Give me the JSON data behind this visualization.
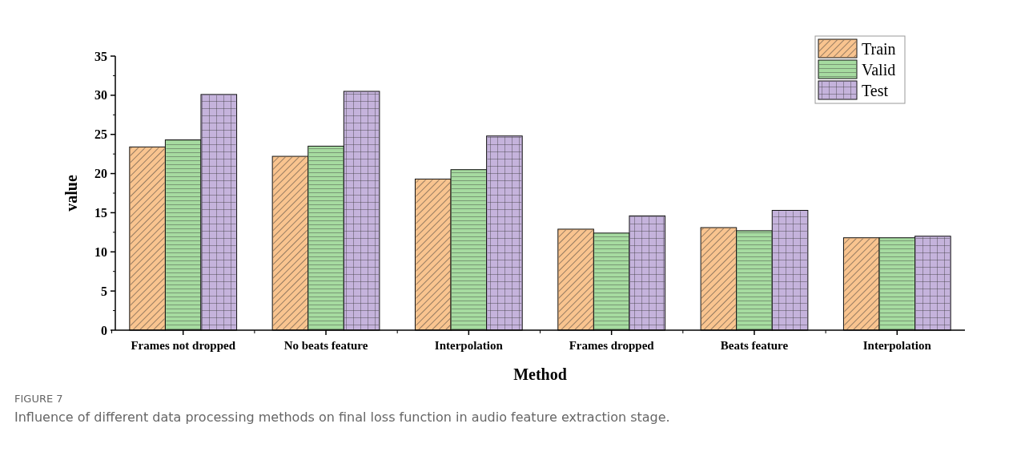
{
  "chart_data": {
    "type": "bar",
    "xlabel": "Method",
    "ylabel": "value",
    "categories": [
      "Frames not dropped",
      "No beats feature",
      "Interpolation",
      "Frames dropped",
      "Beats feature",
      "Interpolation"
    ],
    "series": [
      {
        "name": "Train",
        "color": "#f9c48f",
        "values": [
          23.4,
          22.2,
          19.3,
          12.9,
          13.1,
          11.8
        ]
      },
      {
        "name": "Valid",
        "color": "#a6dba0",
        "values": [
          24.3,
          23.5,
          20.5,
          12.4,
          12.7,
          11.8
        ]
      },
      {
        "name": "Test",
        "color": "#c5b3dc",
        "values": [
          30.1,
          30.5,
          24.8,
          14.6,
          15.3,
          12.0
        ]
      }
    ],
    "ylim": [
      0,
      35
    ],
    "yticks": [
      0,
      5,
      10,
      15,
      20,
      25,
      30,
      35
    ],
    "legend": "top right",
    "annotations": [
      "FIGURE 7",
      "Influence of different data processing methods on final loss function in audio feature extraction stage."
    ]
  }
}
